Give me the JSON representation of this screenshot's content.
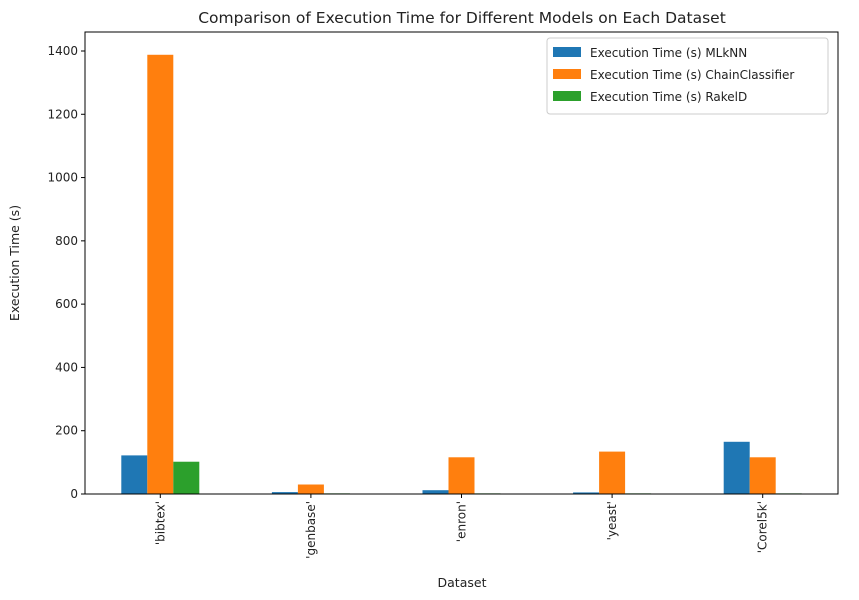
{
  "chart_data": {
    "type": "bar",
    "title": "Comparison of Execution Time for Different Models on Each Dataset",
    "xlabel": "Dataset",
    "ylabel": "Execution Time (s)",
    "categories": [
      "'bibtex'",
      "'genbase'",
      "'enron'",
      "'yeast'",
      "'Corel5k'"
    ],
    "series": [
      {
        "name": "Execution Time (s) MLkNN",
        "color": "#1f77b4",
        "values": [
          122,
          6,
          12,
          5,
          165
        ]
      },
      {
        "name": "Execution Time (s) ChainClassifier",
        "color": "#ff7f0e",
        "values": [
          1388,
          30,
          116,
          134,
          116
        ]
      },
      {
        "name": "Execution Time (s) RakelD",
        "color": "#2ca02c",
        "values": [
          102,
          2,
          2,
          2,
          2
        ]
      }
    ],
    "ylim": [
      0,
      1460
    ],
    "yticks": [
      0,
      200,
      400,
      600,
      800,
      1000,
      1200,
      1400
    ],
    "grid": false,
    "legend_position": "top-right"
  }
}
